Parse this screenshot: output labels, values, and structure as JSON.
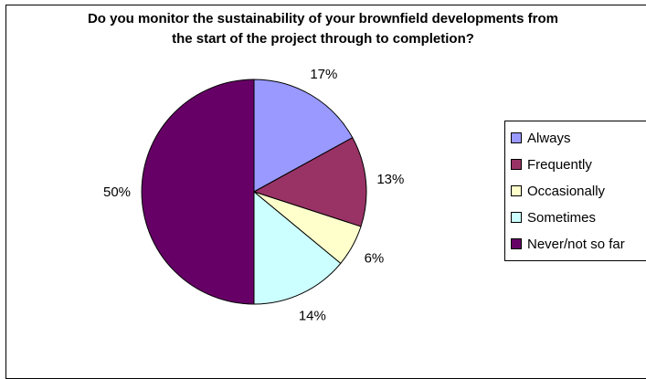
{
  "chart_data": {
    "type": "pie",
    "title_lines": [
      "Do you monitor the sustainability of your brownfield developments from",
      "the start of the project through to completion?"
    ],
    "categories": [
      "Always",
      "Frequently",
      "Occasionally",
      "Sometimes",
      "Never/not so far"
    ],
    "values": [
      17,
      13,
      6,
      14,
      50
    ],
    "labels": [
      "17%",
      "13%",
      "6%",
      "14%",
      "50%"
    ],
    "colors": [
      "#9999ff",
      "#993366",
      "#ffffcc",
      "#ccffff",
      "#660066"
    ],
    "legend_position": "right"
  }
}
